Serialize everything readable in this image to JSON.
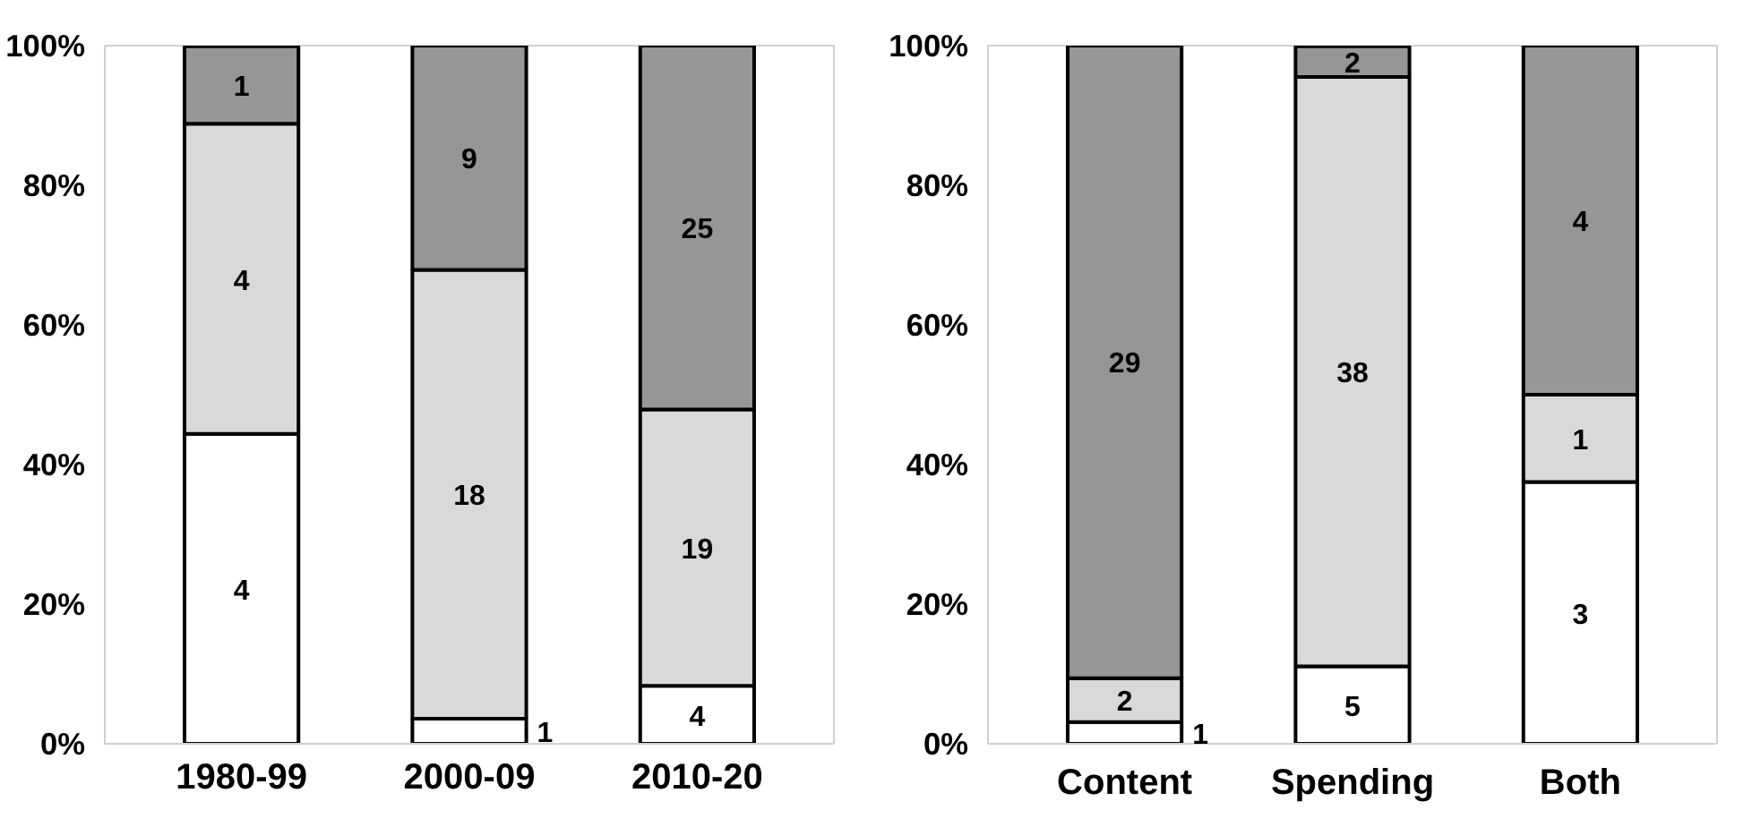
{
  "chart_data": [
    {
      "type": "bar",
      "stacked": true,
      "categories": [
        "1980-99",
        "2000-09",
        "2010-20"
      ],
      "ylim": [
        0,
        100
      ],
      "yticks": [
        {
          "value": 0,
          "label": "0%"
        },
        {
          "value": 20,
          "label": "20%"
        },
        {
          "value": 40,
          "label": "40%"
        },
        {
          "value": 60,
          "label": "60%"
        },
        {
          "value": 80,
          "label": "80%"
        },
        {
          "value": 100,
          "label": "100%"
        }
      ],
      "series": [
        {
          "color": "#ffffff",
          "values": [
            44.4,
            3.6,
            8.3
          ]
        },
        {
          "color": "#d9d9d9",
          "values": [
            44.4,
            64.3,
            39.6
          ]
        },
        {
          "color": "#969696",
          "values": [
            11.1,
            32.1,
            52.1
          ]
        }
      ],
      "annotations": [
        "4",
        "1",
        "4",
        "4",
        "18",
        "19",
        "1",
        "9",
        "25"
      ]
    },
    {
      "type": "bar",
      "stacked": true,
      "categories": [
        "Content",
        "Spending",
        "Both"
      ],
      "ylim": [
        0,
        100
      ],
      "yticks": [
        {
          "value": 0,
          "label": "0%"
        },
        {
          "value": 20,
          "label": "20%"
        },
        {
          "value": 40,
          "label": "40%"
        },
        {
          "value": 60,
          "label": "60%"
        },
        {
          "value": 80,
          "label": "80%"
        },
        {
          "value": 100,
          "label": "100%"
        }
      ],
      "series": [
        {
          "color": "#ffffff",
          "values": [
            3.1,
            11.1,
            37.5
          ]
        },
        {
          "color": "#d9d9d9",
          "values": [
            6.3,
            84.4,
            12.5
          ]
        },
        {
          "color": "#969696",
          "values": [
            90.6,
            4.4,
            50.0
          ]
        }
      ],
      "annotations": [
        "1",
        "5",
        "3",
        "2",
        "38",
        "1",
        "29",
        "2",
        "4"
      ]
    }
  ]
}
